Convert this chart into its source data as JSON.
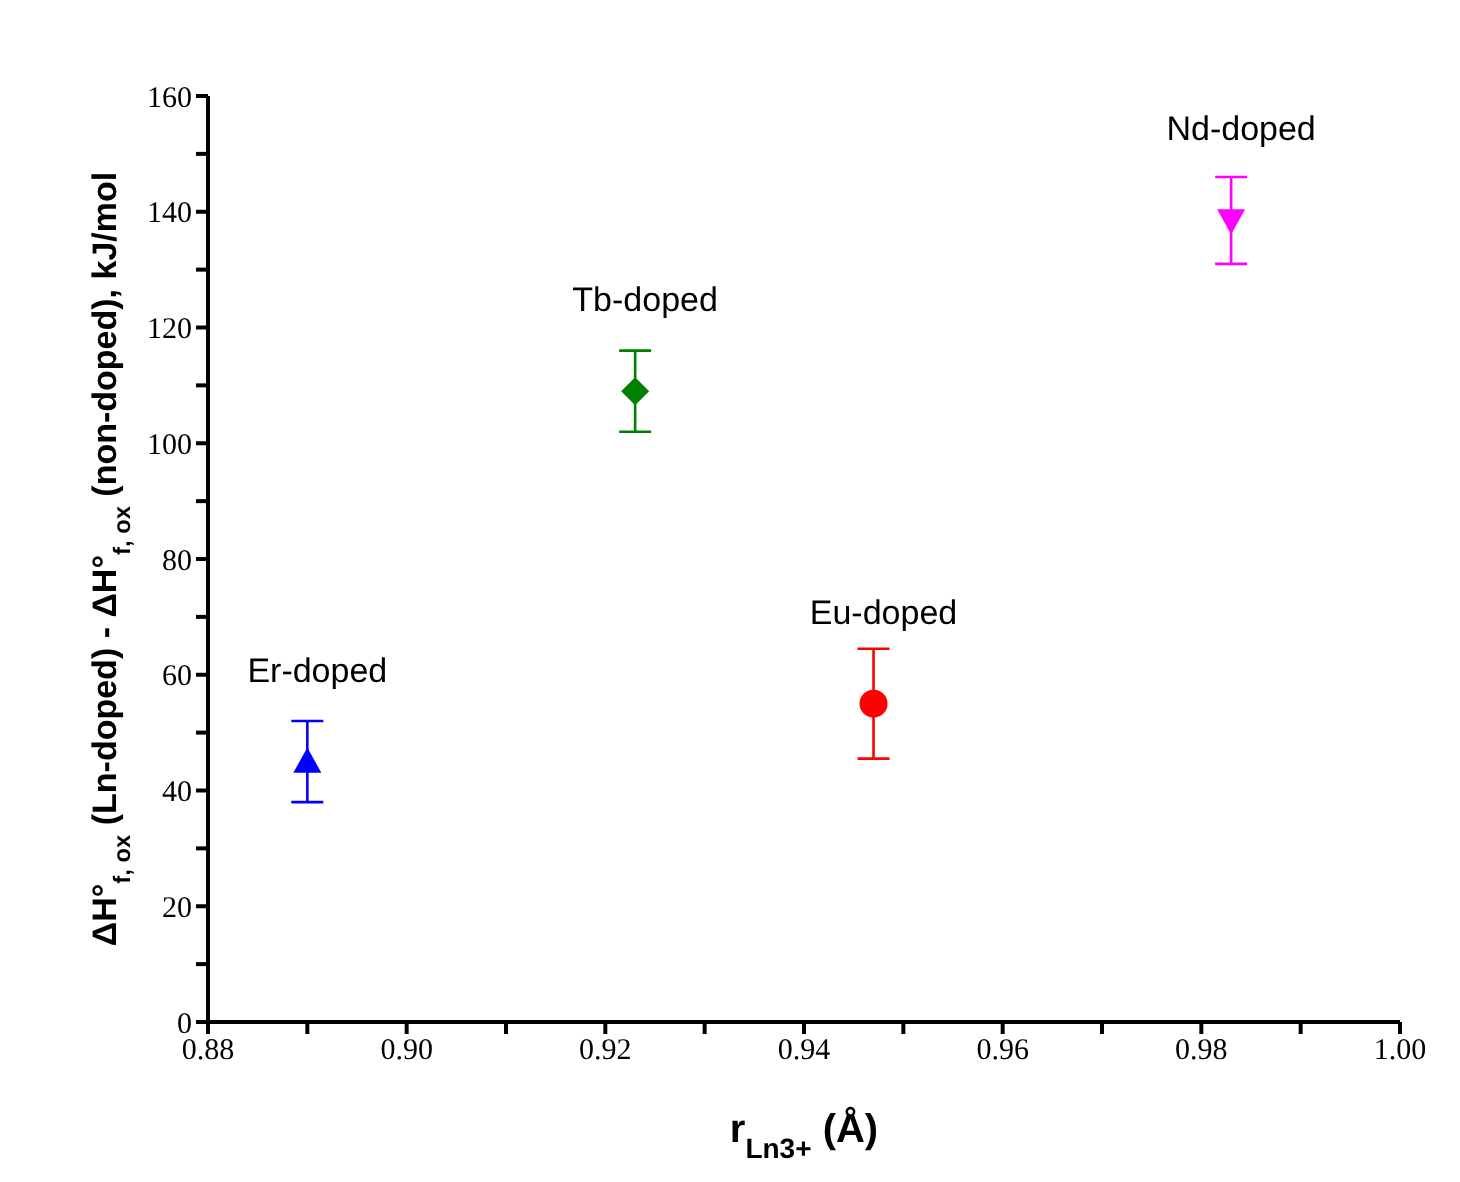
{
  "chart_data": {
    "type": "scatter",
    "xlabel": "r$_{Ln3+}$ (Å)",
    "ylabel": "ΔH°$_{f, ox}$ (Ln-doped) - ΔH°$_{f, ox}$ (non-doped), kJ/mol",
    "xlim": [
      0.88,
      1.0
    ],
    "xticks": [
      {
        "value": 0.88,
        "label": "0.88"
      },
      {
        "value": 0.89,
        "label": null
      },
      {
        "value": 0.9,
        "label": "0.90"
      },
      {
        "value": 0.91,
        "label": null
      },
      {
        "value": 0.92,
        "label": "0.92"
      },
      {
        "value": 0.93,
        "label": null
      },
      {
        "value": 0.94,
        "label": "0.94"
      },
      {
        "value": 0.95,
        "label": null
      },
      {
        "value": 0.96,
        "label": "0.96"
      },
      {
        "value": 0.97,
        "label": null
      },
      {
        "value": 0.98,
        "label": "0.98"
      },
      {
        "value": 0.99,
        "label": null
      },
      {
        "value": 1.0,
        "label": "1.00"
      }
    ],
    "ylim": [
      0,
      160
    ],
    "yticks": [
      0,
      {
        "value": 10,
        "label": null
      },
      20,
      {
        "value": 30,
        "label": null
      },
      40,
      {
        "value": 50,
        "label": null
      },
      60,
      {
        "value": 70,
        "label": null
      },
      80,
      {
        "value": 90,
        "label": null
      },
      100,
      {
        "value": 110,
        "label": null
      },
      120,
      {
        "value": 130,
        "label": null
      },
      140,
      {
        "value": 150,
        "label": null
      },
      160
    ],
    "grid": false,
    "legend": false,
    "series": [
      {
        "name": "Er-doped",
        "color": "#0000ff",
        "marker": "triangle",
        "x": [
          0.89
        ],
        "values": [
          45
        ],
        "errors": [
          7
        ]
      },
      {
        "name": "Tb-doped",
        "color": "#008000",
        "marker": "diamond",
        "x": [
          0.923
        ],
        "values": [
          109
        ],
        "errors": [
          7
        ]
      },
      {
        "name": "Eu-doped",
        "color": "#ff0000",
        "marker": "circle",
        "x": [
          0.947
        ],
        "values": [
          55
        ],
        "errors": [
          9.5
        ]
      },
      {
        "name": "Nd-doped",
        "color": "#ff00ff",
        "marker": "triangle-down",
        "x": [
          0.983
        ],
        "values": [
          138.5
        ],
        "errors": [
          7.5
        ]
      }
    ]
  }
}
